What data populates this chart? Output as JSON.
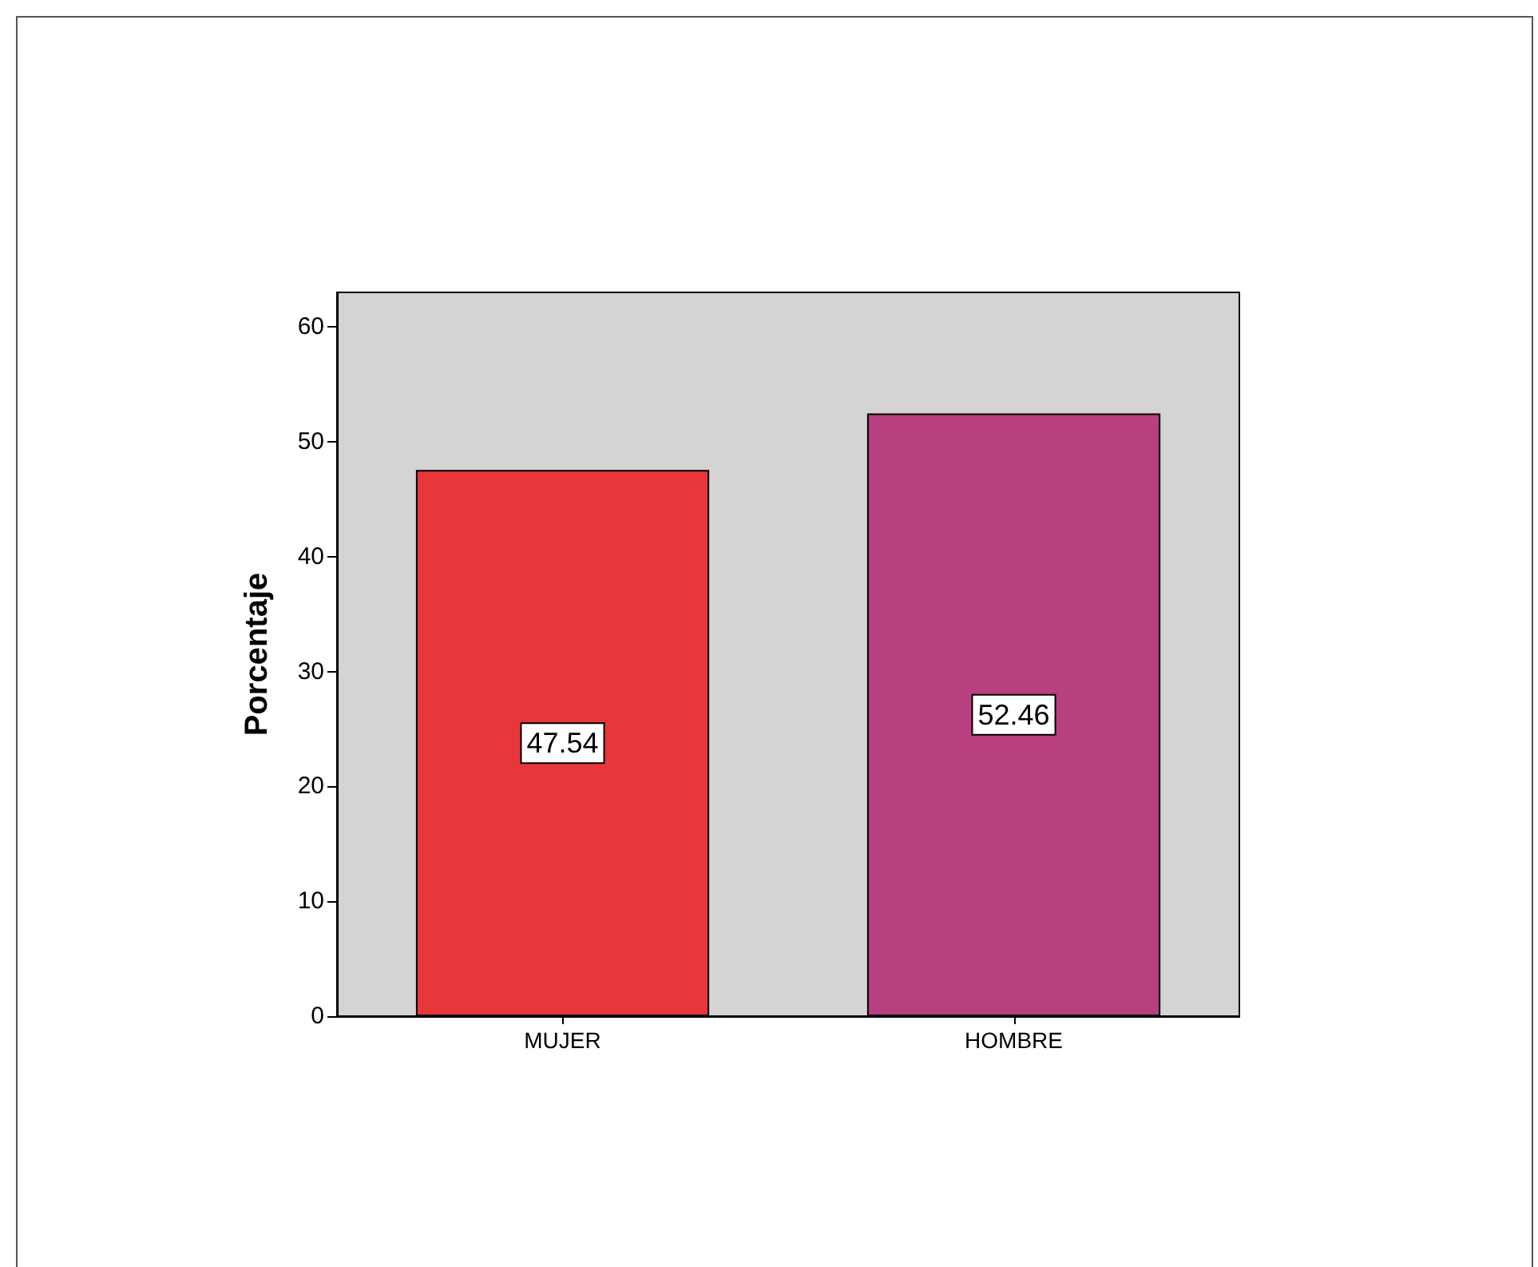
{
  "chart_data": {
    "type": "bar",
    "ylabel": "Porcentaje",
    "categories": [
      "MUJER",
      "HOMBRE"
    ],
    "values": [
      47.54,
      52.46
    ],
    "colors": [
      "#e8373a",
      "#b83f80"
    ],
    "ylim": [
      0,
      63
    ],
    "yticks": [
      0,
      10,
      20,
      30,
      40,
      50,
      60
    ],
    "grid": false,
    "data_labels": true
  }
}
